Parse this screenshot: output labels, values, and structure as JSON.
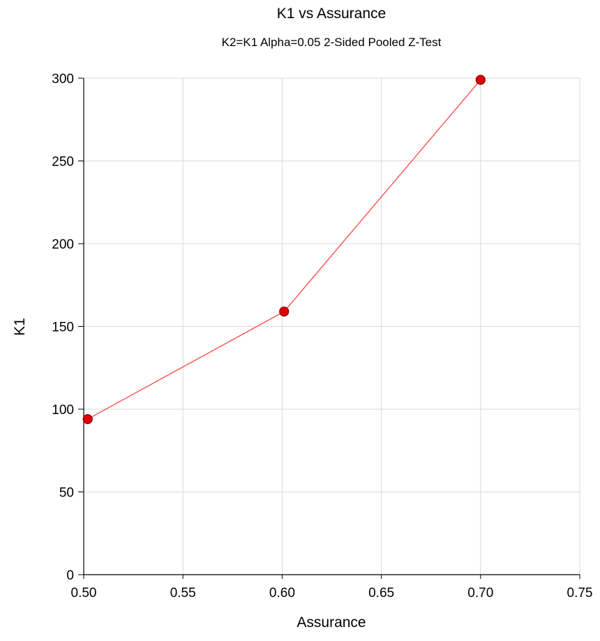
{
  "chart_data": {
    "type": "line",
    "title": "K1 vs Assurance",
    "subtitle": "K2=K1 Alpha=0.05 2-Sided Pooled Z-Test",
    "xlabel": "Assurance",
    "ylabel": "K1",
    "xlim": [
      0.5,
      0.75
    ],
    "ylim": [
      0,
      300
    ],
    "x_ticks": [
      "0.50",
      "0.55",
      "0.60",
      "0.65",
      "0.70",
      "0.75"
    ],
    "y_ticks": [
      "0",
      "50",
      "100",
      "150",
      "200",
      "250",
      "300"
    ],
    "grid": true,
    "series": [
      {
        "x": [
          0.502,
          0.601,
          0.7
        ],
        "values": [
          94,
          159,
          299
        ],
        "line_color": "#ff5050",
        "marker_color": "#e00000",
        "marker_edge_color": "#800000"
      }
    ]
  }
}
